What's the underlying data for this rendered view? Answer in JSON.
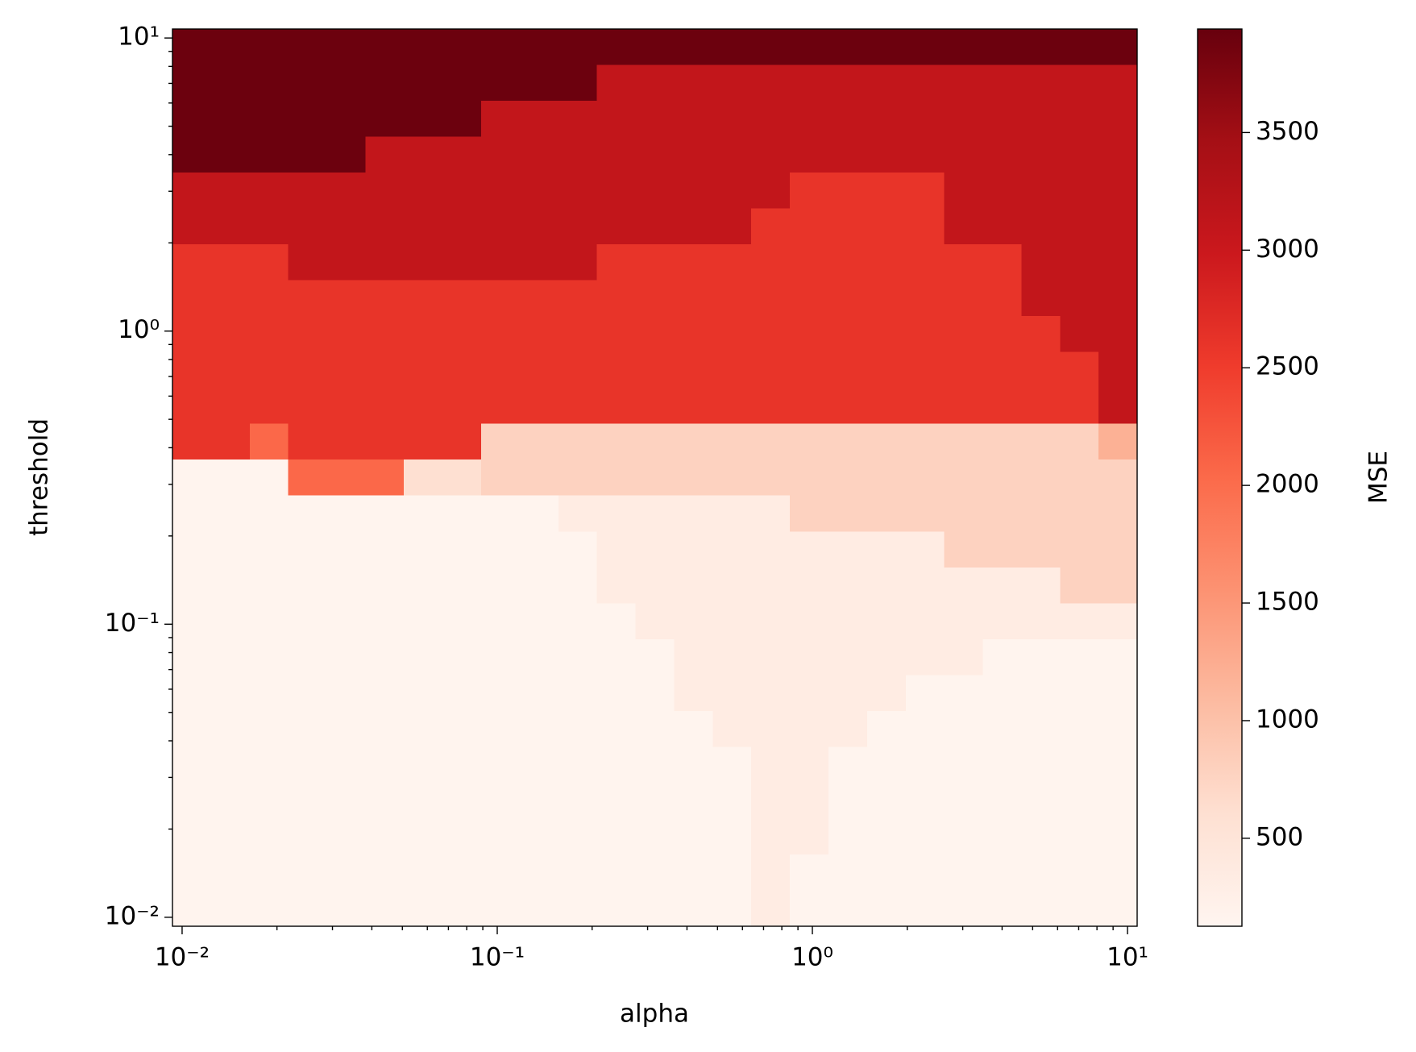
{
  "chart_data": {
    "type": "heatmap",
    "xlabel": "alpha",
    "ylabel": "threshold",
    "xscale": "log",
    "yscale": "log",
    "xlim": [
      0.00932,
      10.73
    ],
    "ylim": [
      0.00932,
      10.73
    ],
    "xticks": [
      {
        "value": 0.01,
        "label": "10⁻²"
      },
      {
        "value": 0.1,
        "label": "10⁻¹"
      },
      {
        "value": 1,
        "label": "10⁰"
      },
      {
        "value": 10,
        "label": "10¹"
      }
    ],
    "yticks": [
      {
        "value": 0.01,
        "label": "10⁻²"
      },
      {
        "value": 0.1,
        "label": "10⁻¹"
      },
      {
        "value": 1,
        "label": "10⁰"
      },
      {
        "value": 10,
        "label": "10¹"
      }
    ],
    "xminorticks": [
      0.02,
      0.03,
      0.04,
      0.05,
      0.06,
      0.07,
      0.08,
      0.09,
      0.2,
      0.3,
      0.4,
      0.5,
      0.6,
      0.7,
      0.8,
      0.9,
      2,
      3,
      4,
      5,
      6,
      7,
      8,
      9
    ],
    "yminorticks": [
      0.02,
      0.03,
      0.04,
      0.05,
      0.06,
      0.07,
      0.08,
      0.09,
      0.2,
      0.3,
      0.4,
      0.5,
      0.6,
      0.7,
      0.8,
      0.9,
      2,
      3,
      4,
      5,
      6,
      7,
      8,
      9
    ],
    "x_edges": [
      0.00932,
      0.01235,
      0.01638,
      0.02171,
      0.02878,
      0.03815,
      0.05058,
      0.06706,
      0.08892,
      0.1179,
      0.1563,
      0.2072,
      0.2747,
      0.3641,
      0.4827,
      0.64,
      0.8485,
      1.125,
      1.491,
      1.977,
      2.621,
      3.474,
      4.606,
      6.106,
      8.095,
      10.73
    ],
    "y_edges": [
      10.73,
      8.095,
      6.106,
      4.606,
      3.474,
      2.621,
      1.977,
      1.491,
      1.125,
      0.8485,
      0.64,
      0.4827,
      0.3641,
      0.2747,
      0.2072,
      0.1563,
      0.1179,
      0.08892,
      0.06706,
      0.05058,
      0.03815,
      0.02878,
      0.02171,
      0.01638,
      0.01235,
      0.00932
    ],
    "z": [
      [
        3900,
        3900,
        3900,
        3900,
        3900,
        3900,
        3900,
        3900,
        3900,
        3900,
        3900,
        3900,
        3900,
        3900,
        3900,
        3900,
        3900,
        3900,
        3900,
        3900,
        3900,
        3900,
        3900,
        3900,
        3900
      ],
      [
        3900,
        3900,
        3900,
        3900,
        3900,
        3900,
        3900,
        3900,
        3900,
        3900,
        3900,
        3100,
        3100,
        3100,
        3100,
        3100,
        3100,
        3100,
        3100,
        3100,
        3100,
        3100,
        3100,
        3100,
        3100
      ],
      [
        3900,
        3900,
        3900,
        3900,
        3900,
        3900,
        3900,
        3900,
        3100,
        3100,
        3100,
        3100,
        3100,
        3100,
        3100,
        3100,
        3100,
        3100,
        3100,
        3100,
        3100,
        3100,
        3100,
        3100,
        3100
      ],
      [
        3900,
        3900,
        3900,
        3900,
        3900,
        3100,
        3100,
        3100,
        3100,
        3100,
        3100,
        3100,
        3100,
        3100,
        3100,
        3100,
        3100,
        3100,
        3100,
        3100,
        3100,
        3100,
        3100,
        3100,
        3100
      ],
      [
        3100,
        3100,
        3100,
        3100,
        3100,
        3100,
        3100,
        3100,
        3100,
        3100,
        3100,
        3100,
        3100,
        3100,
        3100,
        3100,
        2600,
        2600,
        2600,
        2600,
        3100,
        3100,
        3100,
        3100,
        3100
      ],
      [
        3100,
        3100,
        3100,
        3100,
        3100,
        3100,
        3100,
        3100,
        3100,
        3100,
        3100,
        3100,
        3100,
        3100,
        3100,
        2600,
        2600,
        2600,
        2600,
        2600,
        3100,
        3100,
        3100,
        3100,
        3100
      ],
      [
        2600,
        2600,
        2600,
        3100,
        3100,
        3100,
        3100,
        3100,
        3100,
        3100,
        3100,
        2600,
        2600,
        2600,
        2600,
        2600,
        2600,
        2600,
        2600,
        2600,
        2600,
        2600,
        3100,
        3100,
        3100
      ],
      [
        2600,
        2600,
        2600,
        2600,
        2600,
        2600,
        2600,
        2600,
        2600,
        2600,
        2600,
        2600,
        2600,
        2600,
        2600,
        2600,
        2600,
        2600,
        2600,
        2600,
        2600,
        2600,
        3100,
        3100,
        3100
      ],
      [
        2600,
        2600,
        2600,
        2600,
        2600,
        2600,
        2600,
        2600,
        2600,
        2600,
        2600,
        2600,
        2600,
        2600,
        2600,
        2600,
        2600,
        2600,
        2600,
        2600,
        2600,
        2600,
        2600,
        3100,
        3100
      ],
      [
        2600,
        2600,
        2600,
        2600,
        2600,
        2600,
        2600,
        2600,
        2600,
        2600,
        2600,
        2600,
        2600,
        2600,
        2600,
        2600,
        2600,
        2600,
        2600,
        2600,
        2600,
        2600,
        2600,
        2600,
        3100
      ],
      [
        2600,
        2600,
        2600,
        2600,
        2600,
        2600,
        2600,
        2600,
        2600,
        2600,
        2600,
        2600,
        2600,
        2600,
        2600,
        2600,
        2600,
        2600,
        2600,
        2600,
        2600,
        2600,
        2600,
        2600,
        3100
      ],
      [
        2600,
        2600,
        2050,
        2600,
        2600,
        2600,
        2600,
        2600,
        780,
        780,
        780,
        780,
        780,
        780,
        780,
        780,
        780,
        780,
        780,
        780,
        780,
        780,
        780,
        780,
        1200
      ],
      [
        160,
        160,
        160,
        2050,
        2050,
        2050,
        600,
        600,
        780,
        780,
        780,
        780,
        780,
        780,
        780,
        780,
        780,
        780,
        780,
        780,
        780,
        780,
        780,
        780,
        780
      ],
      [
        160,
        160,
        160,
        160,
        160,
        160,
        160,
        160,
        160,
        160,
        330,
        330,
        330,
        330,
        330,
        330,
        780,
        780,
        780,
        780,
        780,
        780,
        780,
        780,
        780
      ],
      [
        160,
        160,
        160,
        160,
        160,
        160,
        160,
        160,
        160,
        160,
        160,
        330,
        330,
        330,
        330,
        330,
        330,
        330,
        330,
        330,
        780,
        780,
        780,
        780,
        780
      ],
      [
        160,
        160,
        160,
        160,
        160,
        160,
        160,
        160,
        160,
        160,
        160,
        330,
        330,
        330,
        330,
        330,
        330,
        330,
        330,
        330,
        330,
        330,
        330,
        780,
        780
      ],
      [
        160,
        160,
        160,
        160,
        160,
        160,
        160,
        160,
        160,
        160,
        160,
        160,
        330,
        330,
        330,
        330,
        330,
        330,
        330,
        330,
        330,
        330,
        330,
        330,
        330
      ],
      [
        160,
        160,
        160,
        160,
        160,
        160,
        160,
        160,
        160,
        160,
        160,
        160,
        160,
        330,
        330,
        330,
        330,
        330,
        330,
        330,
        330,
        160,
        160,
        160,
        160
      ],
      [
        160,
        160,
        160,
        160,
        160,
        160,
        160,
        160,
        160,
        160,
        160,
        160,
        160,
        330,
        330,
        330,
        330,
        330,
        330,
        160,
        160,
        160,
        160,
        160,
        160
      ],
      [
        160,
        160,
        160,
        160,
        160,
        160,
        160,
        160,
        160,
        160,
        160,
        160,
        160,
        160,
        330,
        330,
        330,
        330,
        160,
        160,
        160,
        160,
        160,
        160,
        160
      ],
      [
        160,
        160,
        160,
        160,
        160,
        160,
        160,
        160,
        160,
        160,
        160,
        160,
        160,
        160,
        160,
        330,
        330,
        160,
        160,
        160,
        160,
        160,
        160,
        160,
        160
      ],
      [
        160,
        160,
        160,
        160,
        160,
        160,
        160,
        160,
        160,
        160,
        160,
        160,
        160,
        160,
        160,
        330,
        330,
        160,
        160,
        160,
        160,
        160,
        160,
        160,
        160
      ],
      [
        160,
        160,
        160,
        160,
        160,
        160,
        160,
        160,
        160,
        160,
        160,
        160,
        160,
        160,
        160,
        330,
        330,
        160,
        160,
        160,
        160,
        160,
        160,
        160,
        160
      ],
      [
        160,
        160,
        160,
        160,
        160,
        160,
        160,
        160,
        160,
        160,
        160,
        160,
        160,
        160,
        160,
        330,
        160,
        160,
        160,
        160,
        160,
        160,
        160,
        160,
        160
      ],
      [
        160,
        160,
        160,
        160,
        160,
        160,
        160,
        160,
        160,
        160,
        160,
        160,
        160,
        160,
        160,
        330,
        160,
        160,
        160,
        160,
        160,
        160,
        160,
        160,
        160
      ]
    ],
    "colormap": [
      "#fff5f0",
      "#fee0d2",
      "#fcbba1",
      "#fc9272",
      "#fb6a4a",
      "#ef3b2c",
      "#cb181d",
      "#a50f15",
      "#67000d"
    ],
    "clim": [
      126,
      3940
    ],
    "colorbar": {
      "label": "MSE",
      "ticks": [
        500,
        1000,
        1500,
        2000,
        2500,
        3000,
        3500
      ]
    }
  }
}
